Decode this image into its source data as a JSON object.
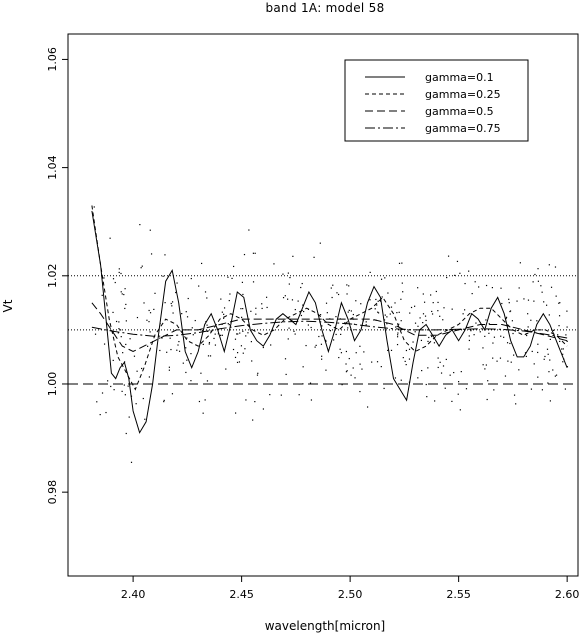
{
  "chart_data": {
    "type": "line",
    "title": "band 1A: model 58",
    "xlabel": "wavelength[micron]",
    "ylabel": "Vt",
    "xlim": [
      2.37,
      2.605
    ],
    "ylim": [
      0.9645,
      1.0647
    ],
    "xticks": [
      2.4,
      2.45,
      2.5,
      2.55,
      2.6
    ],
    "xtick_labels": [
      "2.40",
      "2.45",
      "2.50",
      "2.55",
      "2.60"
    ],
    "yticks": [
      0.98,
      1.0,
      1.02,
      1.04,
      1.06
    ],
    "ytick_labels": [
      "0.98",
      "1.00",
      "1.02",
      "1.04",
      "1.06"
    ],
    "grid": false,
    "legend_position": "top-right",
    "reference_lines": [
      {
        "y": 1.0,
        "style": "dashed"
      },
      {
        "y": 1.01,
        "style": "dotted"
      },
      {
        "y": 1.02,
        "style": "dotted"
      }
    ],
    "series": [
      {
        "name": "gamma=0.1",
        "dash": "",
        "x": [
          2.381,
          2.385,
          2.388,
          2.39,
          2.392,
          2.394,
          2.396,
          2.398,
          2.4,
          2.403,
          2.406,
          2.409,
          2.412,
          2.415,
          2.418,
          2.421,
          2.424,
          2.427,
          2.43,
          2.433,
          2.436,
          2.439,
          2.442,
          2.445,
          2.448,
          2.451,
          2.454,
          2.457,
          2.46,
          2.463,
          2.466,
          2.469,
          2.472,
          2.475,
          2.478,
          2.481,
          2.484,
          2.487,
          2.49,
          2.493,
          2.496,
          2.499,
          2.502,
          2.505,
          2.508,
          2.511,
          2.514,
          2.517,
          2.52,
          2.523,
          2.526,
          2.529,
          2.532,
          2.535,
          2.538,
          2.541,
          2.544,
          2.547,
          2.55,
          2.553,
          2.556,
          2.559,
          2.562,
          2.565,
          2.568,
          2.571,
          2.574,
          2.577,
          2.58,
          2.583,
          2.586,
          2.589,
          2.592,
          2.595,
          2.598,
          2.6
        ],
        "y": [
          1.032,
          1.022,
          1.01,
          1.002,
          1.001,
          1.003,
          1.004,
          1.001,
          0.995,
          0.991,
          0.993,
          1.0,
          1.01,
          1.019,
          1.021,
          1.015,
          1.006,
          1.003,
          1.006,
          1.011,
          1.013,
          1.01,
          1.006,
          1.011,
          1.017,
          1.016,
          1.01,
          1.008,
          1.007,
          1.009,
          1.012,
          1.013,
          1.012,
          1.011,
          1.014,
          1.017,
          1.015,
          1.01,
          1.006,
          1.01,
          1.015,
          1.012,
          1.008,
          1.01,
          1.015,
          1.018,
          1.016,
          1.008,
          1.001,
          0.999,
          0.997,
          1.004,
          1.01,
          1.011,
          1.009,
          1.007,
          1.009,
          1.01,
          1.008,
          1.01,
          1.013,
          1.012,
          1.01,
          1.014,
          1.016,
          1.013,
          1.008,
          1.005,
          1.005,
          1.007,
          1.011,
          1.013,
          1.011,
          1.008,
          1.005,
          1.003
        ]
      },
      {
        "name": "gamma=0.25",
        "dash": "4,3",
        "x": [
          2.381,
          2.385,
          2.389,
          2.393,
          2.397,
          2.401,
          2.405,
          2.41,
          2.415,
          2.42,
          2.425,
          2.43,
          2.435,
          2.44,
          2.445,
          2.45,
          2.455,
          2.46,
          2.465,
          2.47,
          2.475,
          2.48,
          2.485,
          2.49,
          2.495,
          2.5,
          2.505,
          2.51,
          2.515,
          2.52,
          2.525,
          2.53,
          2.535,
          2.54,
          2.545,
          2.55,
          2.555,
          2.56,
          2.565,
          2.57,
          2.575,
          2.58,
          2.585,
          2.59,
          2.595,
          2.6
        ],
        "y": [
          1.033,
          1.022,
          1.012,
          1.005,
          1.002,
          0.999,
          1.003,
          1.009,
          1.012,
          1.011,
          1.008,
          1.007,
          1.009,
          1.012,
          1.013,
          1.012,
          1.01,
          1.009,
          1.01,
          1.012,
          1.013,
          1.014,
          1.013,
          1.011,
          1.01,
          1.012,
          1.013,
          1.014,
          1.016,
          1.013,
          1.008,
          1.006,
          1.007,
          1.009,
          1.01,
          1.011,
          1.013,
          1.014,
          1.014,
          1.012,
          1.01,
          1.009,
          1.01,
          1.01,
          1.009,
          1.007
        ]
      },
      {
        "name": "gamma=0.5",
        "dash": "8,4",
        "x": [
          2.381,
          2.385,
          2.39,
          2.395,
          2.4,
          2.405,
          2.41,
          2.415,
          2.42,
          2.425,
          2.43,
          2.44,
          2.45,
          2.46,
          2.47,
          2.48,
          2.49,
          2.5,
          2.51,
          2.52,
          2.525,
          2.53,
          2.535,
          2.54,
          2.55,
          2.56,
          2.57,
          2.58,
          2.59,
          2.6
        ],
        "y": [
          1.015,
          1.013,
          1.01,
          1.007,
          1.006,
          1.007,
          1.008,
          1.009,
          1.01,
          1.01,
          1.01,
          1.011,
          1.012,
          1.012,
          1.012,
          1.012,
          1.012,
          1.012,
          1.012,
          1.011,
          1.01,
          1.009,
          1.009,
          1.009,
          1.01,
          1.011,
          1.011,
          1.01,
          1.009,
          1.008
        ]
      },
      {
        "name": "gamma=0.75",
        "dash": "10,3,2,3",
        "x": [
          2.381,
          2.39,
          2.4,
          2.41,
          2.42,
          2.43,
          2.44,
          2.45,
          2.46,
          2.47,
          2.48,
          2.49,
          2.5,
          2.51,
          2.52,
          2.53,
          2.54,
          2.55,
          2.56,
          2.57,
          2.58,
          2.59,
          2.6
        ],
        "y": [
          1.0105,
          1.0098,
          1.0092,
          1.0088,
          1.009,
          1.0095,
          1.0102,
          1.0108,
          1.0112,
          1.0115,
          1.0116,
          1.0114,
          1.0111,
          1.0106,
          1.0102,
          1.01,
          1.01,
          1.0101,
          1.0102,
          1.0101,
          1.0098,
          1.0092,
          1.0085
        ]
      }
    ]
  }
}
